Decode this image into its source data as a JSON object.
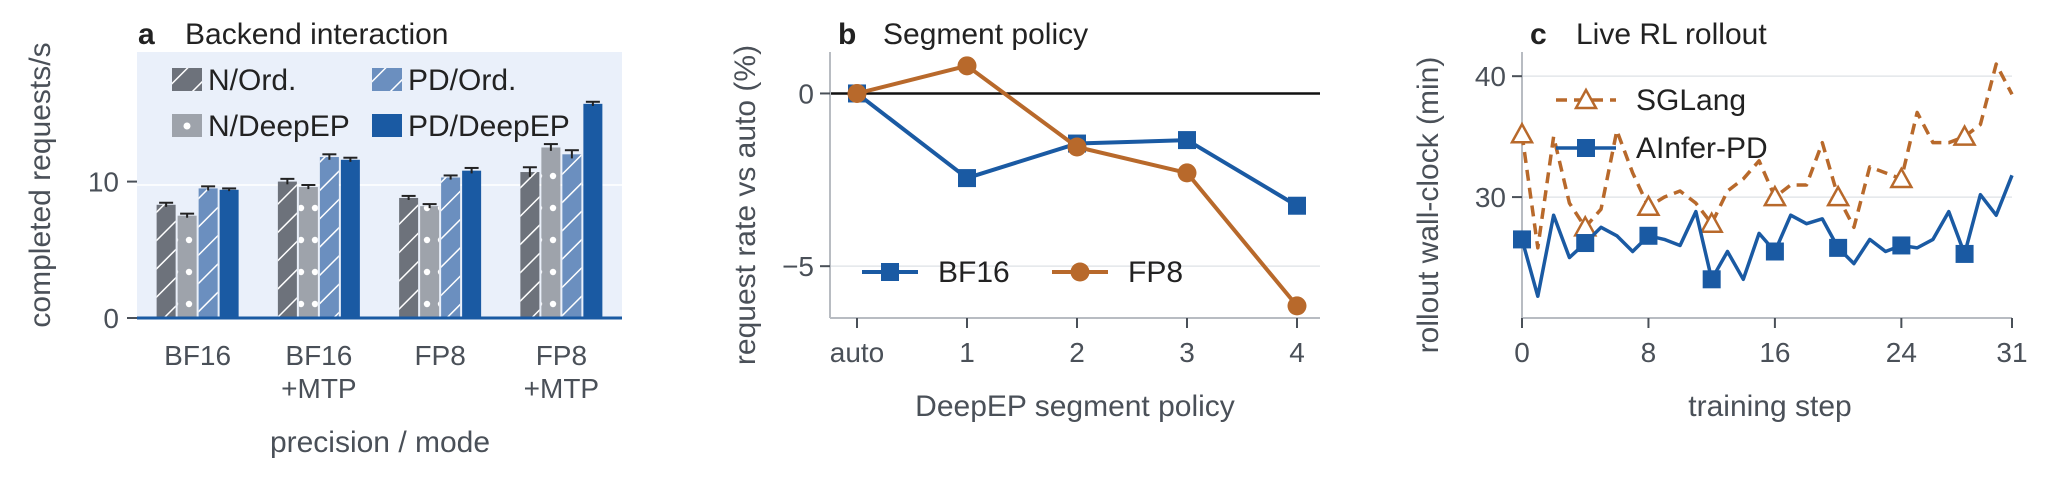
{
  "chart_data": [
    {
      "type": "bar",
      "letter": "a",
      "title": "Backend interaction",
      "xlabel": "precision / mode",
      "ylabel": "completed requests/s",
      "ylim": [
        0,
        19.5
      ],
      "yticks": [
        0,
        10
      ],
      "categories": [
        [
          "BF16"
        ],
        [
          "BF16",
          "+MTP"
        ],
        [
          "FP8"
        ],
        [
          "FP8",
          "+MTP"
        ]
      ],
      "series": [
        {
          "name": "N/Ord.",
          "values": [
            8.3,
            10.0,
            8.8,
            10.7
          ],
          "errors": [
            0.15,
            0.2,
            0.15,
            0.35
          ],
          "color": "#6d727b",
          "hatch": "diagonal"
        },
        {
          "name": "N/DeepEP",
          "values": [
            7.5,
            9.6,
            8.2,
            12.5
          ],
          "errors": [
            0.15,
            0.15,
            0.15,
            0.25
          ],
          "color": "#9ea3ab",
          "hatch": "dots"
        },
        {
          "name": "PD/Ord.",
          "values": [
            9.5,
            11.8,
            10.3,
            12.0
          ],
          "errors": [
            0.15,
            0.2,
            0.15,
            0.3
          ],
          "color": "#6b8fbf",
          "hatch": "diagonal"
        },
        {
          "name": "PD/DeepEP",
          "values": [
            9.4,
            11.6,
            10.8,
            15.7
          ],
          "errors": [
            0.1,
            0.15,
            0.2,
            0.15
          ],
          "color": "#1a5aa3",
          "hatch": "none"
        }
      ],
      "legend_order": [
        "N/Ord.",
        "PD/Ord.",
        "N/DeepEP",
        "PD/DeepEP"
      ],
      "legend": "top"
    },
    {
      "type": "line",
      "letter": "b",
      "title": "Segment policy",
      "xlabel": "DeepEP segment policy",
      "ylabel": "request rate vs auto (%)",
      "x": [
        "auto",
        "1",
        "2",
        "3",
        "4"
      ],
      "ylim": [
        -6.5,
        1.2
      ],
      "yticks": [
        0,
        -5
      ],
      "ytick_labels": [
        "0",
        "−5"
      ],
      "reference_line": 0,
      "series": [
        {
          "name": "BF16",
          "values": [
            0,
            -2.45,
            -1.45,
            -1.35,
            -3.25
          ],
          "color": "#1a5aa3",
          "marker": "square"
        },
        {
          "name": "FP8",
          "values": [
            0,
            0.8,
            -1.55,
            -2.3,
            -6.15
          ],
          "color": "#b8692b",
          "marker": "circle"
        }
      ],
      "legend": "bottom-left"
    },
    {
      "type": "line",
      "letter": "c",
      "title": "Live RL rollout",
      "xlabel": "training step",
      "ylabel": "rollout wall-clock (min)",
      "xticks": [
        0,
        8,
        16,
        24,
        31
      ],
      "xlim": [
        0,
        31
      ],
      "ylim": [
        20,
        42
      ],
      "yticks": [
        30,
        40
      ],
      "series": [
        {
          "name": "SGLang",
          "color": "#b8692b",
          "style": "dashed",
          "marker": "triangle-open",
          "marker_every": 4,
          "x": [
            0,
            1,
            2,
            3,
            4,
            5,
            6,
            7,
            8,
            9,
            10,
            11,
            12,
            13,
            14,
            15,
            16,
            17,
            18,
            19,
            20,
            21,
            22,
            23,
            24,
            25,
            26,
            27,
            28,
            29,
            30,
            31
          ],
          "values": [
            35.2,
            25.8,
            35.0,
            29.5,
            27.5,
            29.0,
            35.5,
            32.0,
            29.2,
            30.0,
            30.5,
            29.5,
            27.8,
            30.5,
            31.5,
            33.0,
            30.0,
            31.0,
            31.0,
            34.5,
            30.0,
            27.5,
            32.5,
            32.0,
            31.5,
            37.0,
            34.5,
            34.5,
            35.0,
            36.0,
            41.0,
            38.5
          ]
        },
        {
          "name": "AInfer-PD",
          "color": "#1a5aa3",
          "style": "solid",
          "marker": "square",
          "marker_every": 4,
          "x": [
            0,
            1,
            2,
            3,
            4,
            5,
            6,
            7,
            8,
            9,
            10,
            11,
            12,
            13,
            14,
            15,
            16,
            17,
            18,
            19,
            20,
            21,
            22,
            23,
            24,
            25,
            26,
            27,
            28,
            29,
            30,
            31
          ],
          "values": [
            26.5,
            21.8,
            28.5,
            25.0,
            26.2,
            27.5,
            26.8,
            25.5,
            26.8,
            26.5,
            26.0,
            28.8,
            23.2,
            25.5,
            23.2,
            27.0,
            25.5,
            28.5,
            27.8,
            28.2,
            25.8,
            24.5,
            26.5,
            25.5,
            26.0,
            25.8,
            26.5,
            28.8,
            25.3,
            30.2,
            28.5,
            31.8
          ]
        }
      ],
      "legend": "top-left"
    }
  ]
}
